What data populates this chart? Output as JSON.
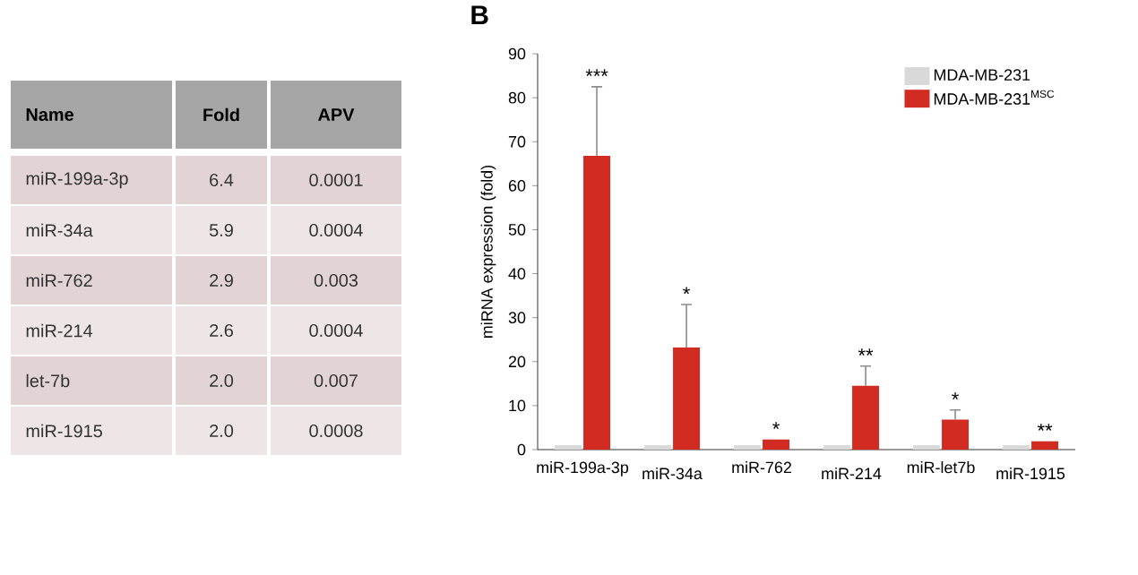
{
  "chart_data": [
    {
      "type": "other",
      "annotations": [
        "Name",
        "Fold",
        "APV",
        "miR-199a-3p",
        "6.4",
        "0.0001",
        "miR-34a",
        "5.9",
        "0.0004",
        "miR-762",
        "2.9",
        "0.003",
        "miR-214",
        "2.6",
        "0.0004",
        "let-7b",
        "2.0",
        "0.007",
        "miR-1915",
        "2.0",
        "0.0008"
      ]
    },
    {
      "type": "bar",
      "title": "B",
      "ylabel": "miRNA expression (fold)",
      "categories": [
        "miR-199a-3p",
        "miR-34a",
        "miR-762",
        "miR-214",
        "miR-let7b",
        "miR-1915"
      ],
      "series": [
        {
          "name": "MDA-MB-231",
          "color": "#d9d9d9",
          "values": [
            1,
            1,
            1,
            1,
            1,
            1
          ]
        },
        {
          "name": "MDA-MB-231$^{MSC}$",
          "color": "#d22b22",
          "values": [
            66.8,
            23.2,
            2.3,
            14.5,
            6.8,
            1.9
          ],
          "errors": [
            [
              66.8,
              82.5
            ],
            [
              23.2,
              33
            ],
            null,
            [
              14.5,
              19
            ],
            [
              6.8,
              9
            ],
            null
          ]
        }
      ],
      "ylim": [
        0,
        90
      ],
      "yticks": [
        0,
        10,
        20,
        30,
        40,
        50,
        60,
        70,
        80,
        90
      ],
      "legend": "top right",
      "annotations": [
        "***",
        "*",
        "*",
        "**",
        "*",
        "**"
      ]
    }
  ]
}
